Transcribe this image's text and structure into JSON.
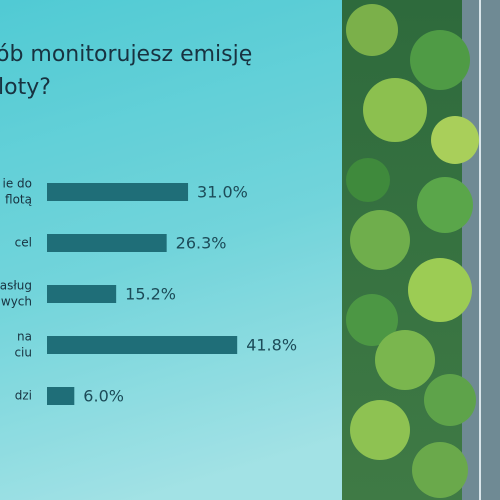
{
  "chart_data": {
    "type": "bar",
    "orientation": "horizontal",
    "title": [
      "ób monitorujesz emisję",
      "loty?"
    ],
    "categories": [
      [
        "ie do",
        "flotą"
      ],
      [
        "cel"
      ],
      [
        "asług",
        "wych"
      ],
      [
        "na",
        "ciu"
      ],
      [
        "dzi"
      ]
    ],
    "values": [
      31.0,
      26.3,
      15.2,
      41.8,
      6.0
    ],
    "value_labels": [
      "31.0%",
      "26.3%",
      "15.2%",
      "41.8%",
      "6.0%"
    ],
    "color": "#1f6e78"
  }
}
